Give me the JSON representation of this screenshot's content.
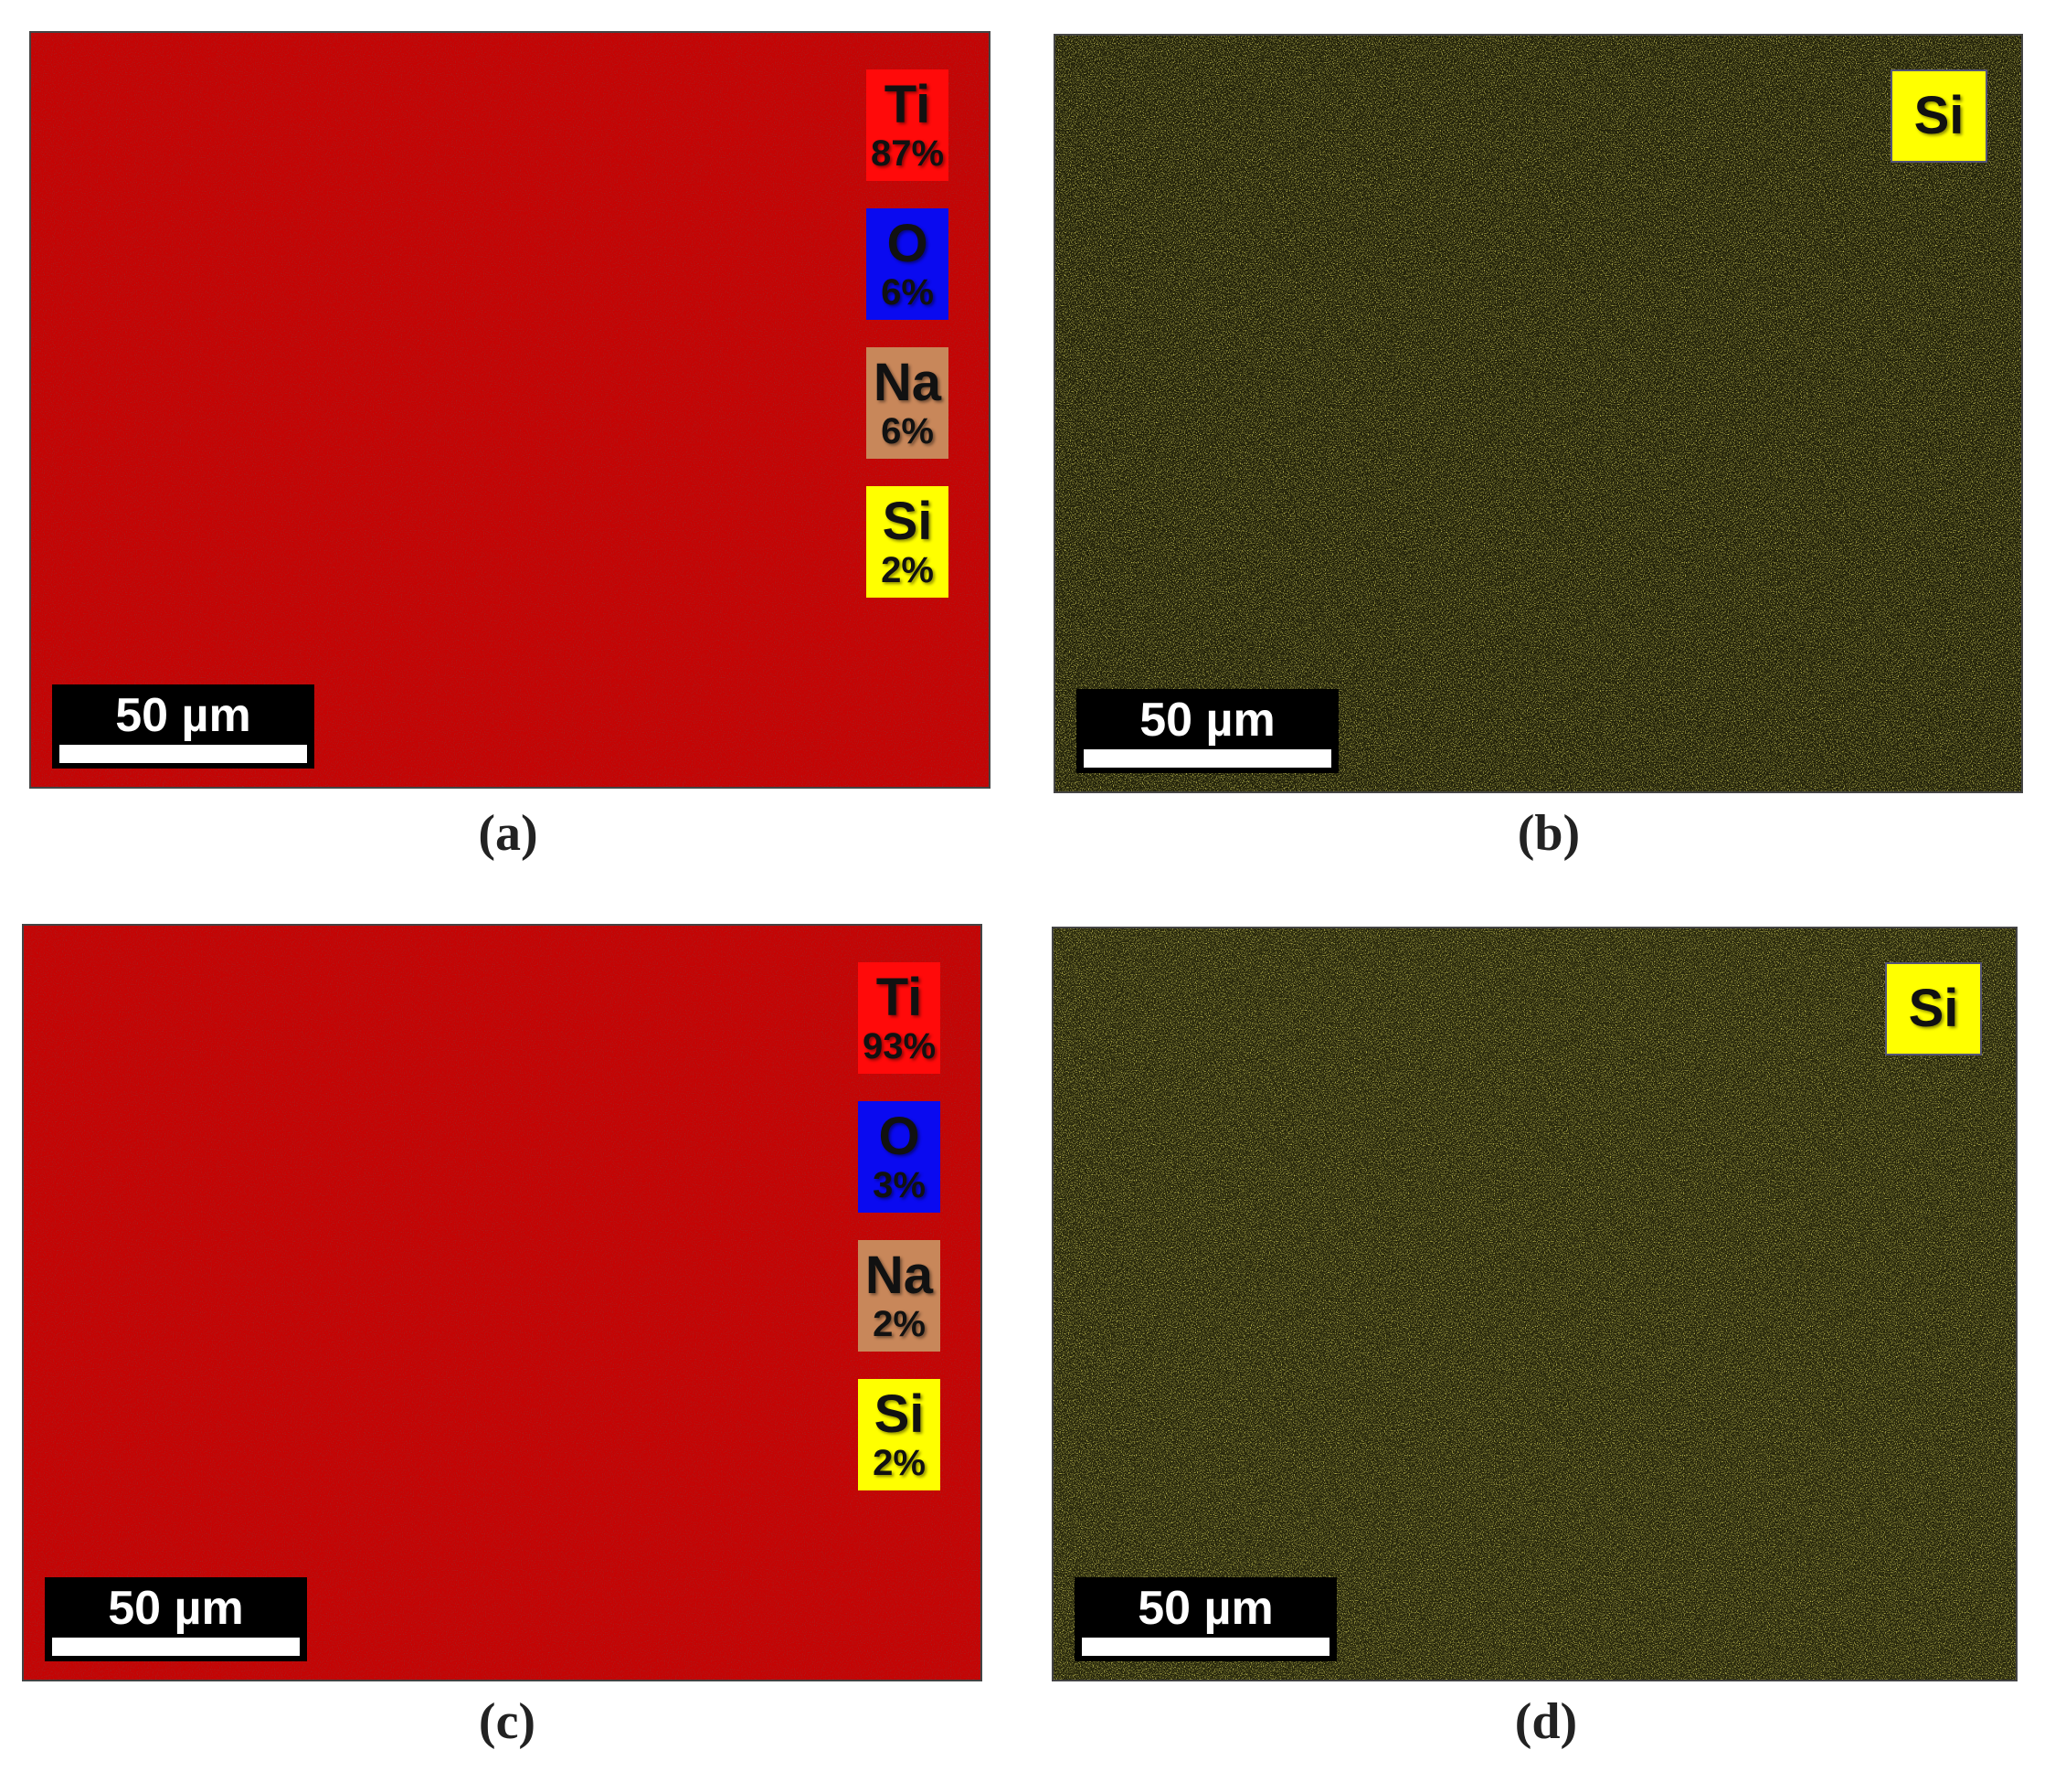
{
  "panels": [
    {
      "label": "(a)",
      "scale_bar": "50 µm",
      "background": "#c40404",
      "elements": [
        {
          "symbol": "Ti",
          "percent": "87%",
          "color": "#ff0a0a"
        },
        {
          "symbol": "O",
          "percent": "6%",
          "color": "#0a0af0"
        },
        {
          "symbol": "Na",
          "percent": "6%",
          "color": "#c8875a"
        },
        {
          "symbol": "Si",
          "percent": "2%",
          "color": "#ffff00"
        }
      ]
    },
    {
      "label": "(b)",
      "scale_bar": "50 µm",
      "background": "#1c1c08",
      "elements": [
        {
          "symbol": "Si",
          "color": "#ffff00"
        }
      ]
    },
    {
      "label": "(c)",
      "scale_bar": "50 µm",
      "background": "#c40404",
      "elements": [
        {
          "symbol": "Ti",
          "percent": "93%",
          "color": "#ff0a0a"
        },
        {
          "symbol": "O",
          "percent": "3%",
          "color": "#0a0af0"
        },
        {
          "symbol": "Na",
          "percent": "2%",
          "color": "#c8875a"
        },
        {
          "symbol": "Si",
          "percent": "2%",
          "color": "#ffff00"
        }
      ]
    },
    {
      "label": "(d)",
      "scale_bar": "50 µm",
      "background": "#22220a",
      "elements": [
        {
          "symbol": "Si",
          "color": "#ffff00"
        }
      ]
    }
  ]
}
